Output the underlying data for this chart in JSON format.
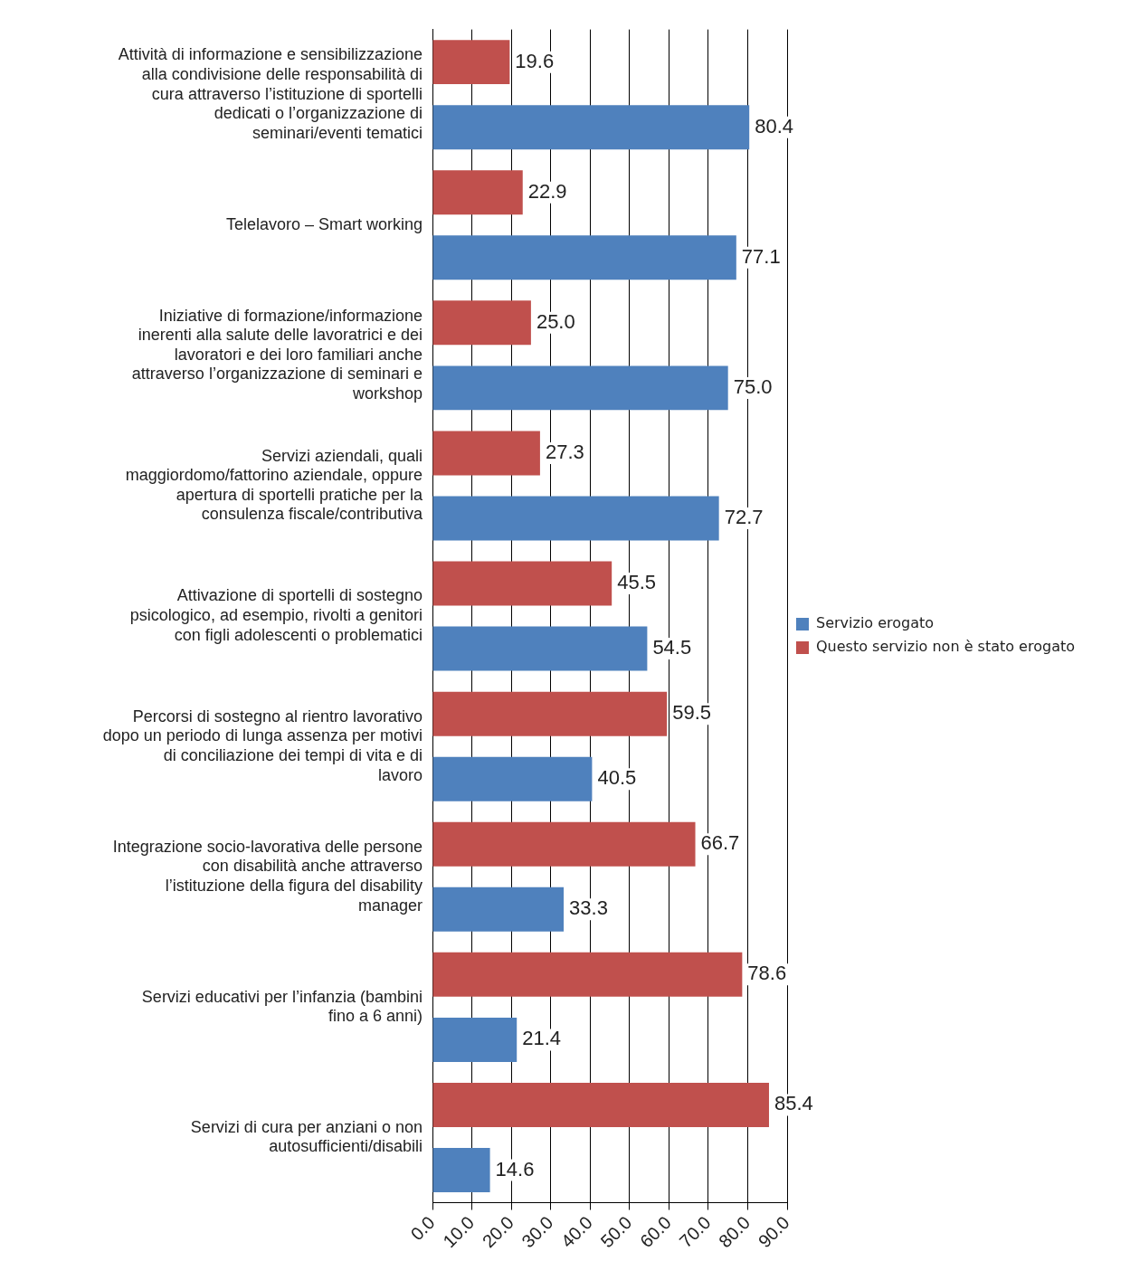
{
  "chart_data": {
    "type": "bar",
    "orientation": "horizontal",
    "categories": [
      "Attività di informazione e sensibilizzazione alla condivisione delle responsabilità di cura attraverso l’istituzione di sportelli dedicati o l’organizzazione di seminari/eventi tematici",
      "Telelavoro – Smart working",
      "Iniziative di formazione/informazione inerenti alla salute delle lavoratrici e dei lavoratori e dei loro familiari anche attraverso l’organizzazione di seminari e workshop",
      "Servizi aziendali, quali maggiordomo/fattorino aziendale, oppure apertura di sportelli pratiche per la consulenza fiscale/contributiva",
      "Attivazione di sportelli di sostegno psicologico, ad esempio, rivolti a genitori con figli adolescenti o problematici",
      "Percorsi di sostegno al rientro lavorativo dopo un periodo di lunga assenza per motivi di conciliazione dei tempi di vita e di lavoro",
      "Integrazione socio-lavorativa delle persone con disabilità anche attraverso l’istituzione della figura del disability manager",
      "Servizi educativi per l’infanzia (bambini fino a 6 anni)",
      "Servizi di cura per anziani o non autosufficienti/disabili"
    ],
    "series": [
      {
        "name": "Servizio erogato",
        "color": "#4f81bd",
        "values": [
          80.4,
          77.1,
          75.0,
          72.7,
          54.5,
          40.5,
          33.3,
          21.4,
          14.6
        ],
        "value_labels": [
          "80.4",
          "77.1",
          "75.0",
          "72.7",
          "54.5",
          "40.5",
          "33.3",
          "21.4",
          "14.6"
        ]
      },
      {
        "name": "Questo servizio non è stato erogato",
        "color": "#c0504d",
        "values": [
          19.6,
          22.9,
          25.0,
          27.3,
          45.5,
          59.5,
          66.7,
          78.6,
          85.4
        ],
        "value_labels": [
          "19.6",
          "22.9",
          "25.0",
          "27.3",
          "45.5",
          "59.5",
          "66.7",
          "78.6",
          "85.4"
        ]
      }
    ],
    "xlim": [
      0,
      90
    ],
    "xticks": [
      {
        "value": 0,
        "label": "0.0"
      },
      {
        "value": 10,
        "label": "10.0"
      },
      {
        "value": 20,
        "label": "20.0"
      },
      {
        "value": 30,
        "label": "30.0"
      },
      {
        "value": 40,
        "label": "40.0"
      },
      {
        "value": 50,
        "label": "50.0"
      },
      {
        "value": 60,
        "label": "60.0"
      },
      {
        "value": 70,
        "label": "70.0"
      },
      {
        "value": 80,
        "label": "80.0"
      },
      {
        "value": 90,
        "label": "90.0"
      }
    ],
    "grid": "x",
    "legend": "right"
  }
}
